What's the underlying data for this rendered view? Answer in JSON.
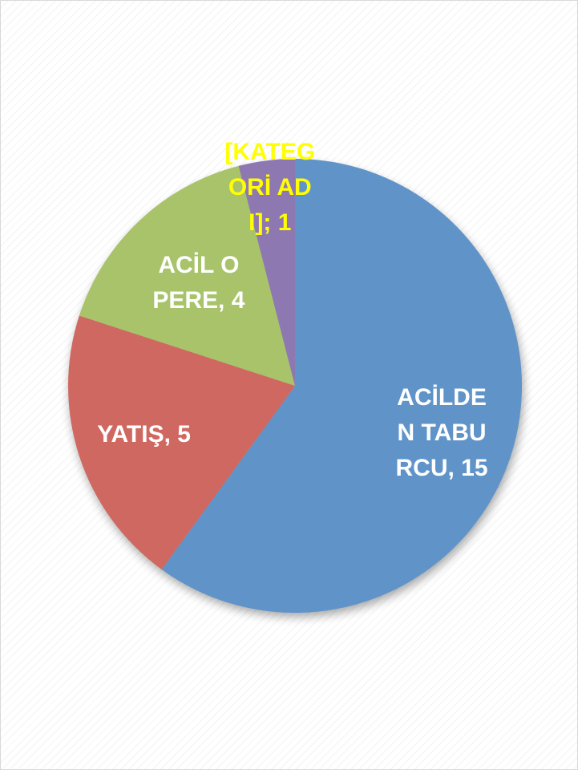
{
  "chart_data": {
    "type": "pie",
    "categories": [
      "ACİLDEN TABURCU",
      "YATIŞ",
      "ACİL OPERE",
      "[KATEGORİ ADI]"
    ],
    "values": [
      15,
      5,
      4,
      1
    ],
    "value_labels": [
      "ACİLDEN TABURCU, 15",
      "YATIŞ, 5",
      "ACİL OPERE, 4",
      "[KATEGORİ ADI]; 1"
    ],
    "colors": [
      "#6094c9",
      "#cf6860",
      "#a8c36a",
      "#8e78b1"
    ],
    "label_colors": [
      "#ffffff",
      "#ffffff",
      "#ffffff",
      "#ffff00"
    ]
  }
}
